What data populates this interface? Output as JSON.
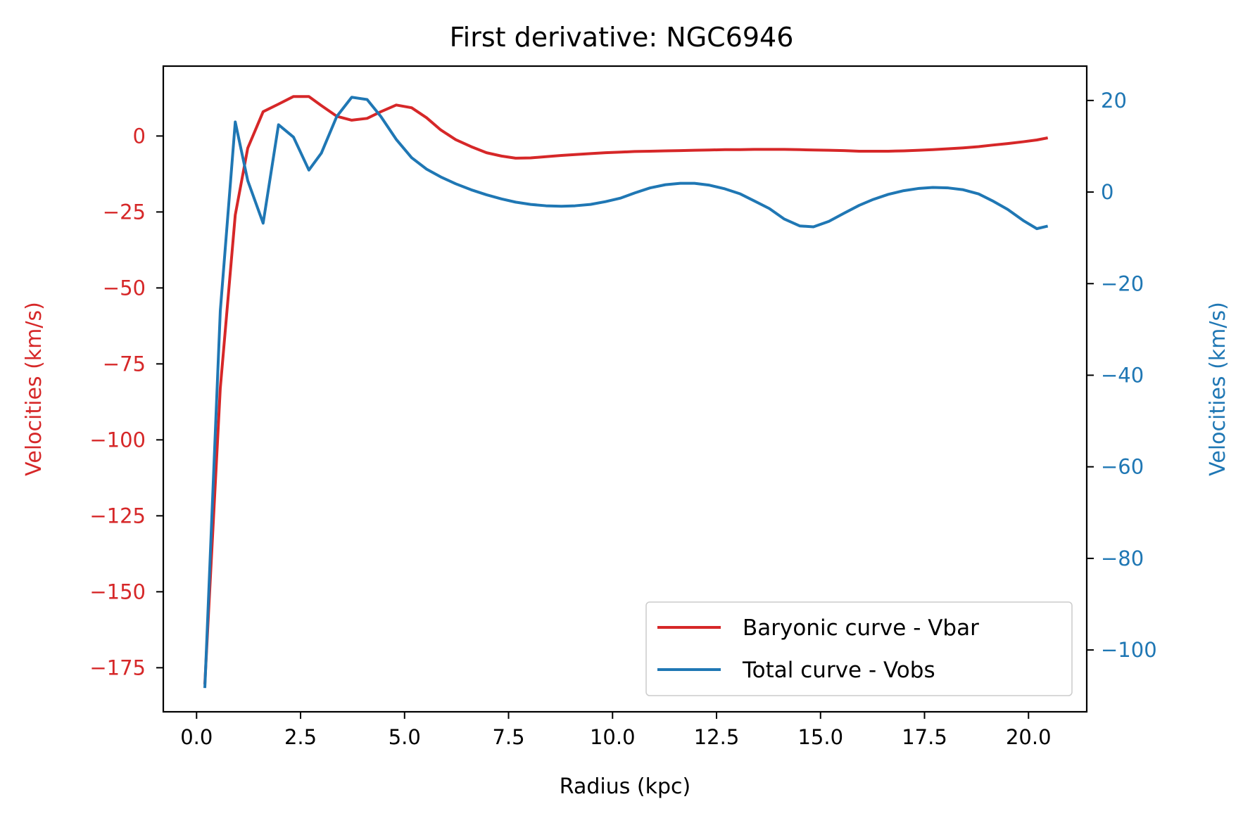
{
  "chart_data": {
    "type": "line",
    "title": "First derivative: NGC6946",
    "xlabel": "Radius (kpc)",
    "ylabel_left": "Velocities (km/s)",
    "ylabel_right": "Velocities (km/s)",
    "xlim": [
      -0.8,
      21.4
    ],
    "ylim_left": [
      -189.5,
      23
    ],
    "ylim_right": [
      -113.5,
      27.5
    ],
    "x_ticks": [
      0.0,
      2.5,
      5.0,
      7.5,
      10.0,
      12.5,
      15.0,
      17.5,
      20.0
    ],
    "x_tick_labels": [
      "0.0",
      "2.5",
      "5.0",
      "7.5",
      "10.0",
      "12.5",
      "15.0",
      "17.5",
      "20.0"
    ],
    "y_left_ticks": [
      0,
      -25,
      -50,
      -75,
      -100,
      -125,
      -150,
      -175
    ],
    "y_left_tick_labels": [
      "0",
      "−25",
      "−50",
      "−75",
      "−100",
      "−125",
      "−150",
      "−175"
    ],
    "y_right_ticks": [
      20,
      0,
      -20,
      -40,
      -60,
      -80,
      -100
    ],
    "y_right_tick_labels": [
      "20",
      "0",
      "−20",
      "−40",
      "−60",
      "−80",
      "−100"
    ],
    "legend_position": "lower-right",
    "grid": false,
    "colors": {
      "left_axis": "#d62728",
      "right_axis": "#1f77b4"
    },
    "series": [
      {
        "name": "Baryonic curve - Vbar",
        "axis": "left",
        "color": "#d62728",
        "x": [
          0.2,
          0.57,
          0.93,
          1.23,
          1.6,
          1.97,
          2.33,
          2.7,
          3.0,
          3.37,
          3.73,
          4.1,
          4.43,
          4.8,
          5.17,
          5.53,
          5.87,
          6.23,
          6.6,
          6.97,
          7.33,
          7.67,
          8.03,
          8.4,
          8.77,
          9.1,
          9.47,
          9.83,
          10.2,
          10.53,
          10.9,
          11.27,
          11.63,
          11.97,
          12.33,
          12.7,
          13.07,
          13.4,
          13.77,
          14.13,
          14.5,
          14.83,
          15.2,
          15.57,
          15.93,
          16.27,
          16.63,
          17.0,
          17.37,
          17.7,
          18.07,
          18.43,
          18.8,
          19.13,
          19.5,
          19.87,
          20.2,
          20.43
        ],
        "y": [
          -180,
          -83,
          -26,
          -4,
          8,
          10.5,
          13,
          13,
          10,
          6.5,
          5.2,
          5.8,
          8,
          10.2,
          9.3,
          6,
          2,
          -1.2,
          -3.5,
          -5.5,
          -6.6,
          -7.3,
          -7.2,
          -6.8,
          -6.4,
          -6.1,
          -5.8,
          -5.5,
          -5.3,
          -5.1,
          -5.0,
          -4.9,
          -4.8,
          -4.7,
          -4.6,
          -4.5,
          -4.5,
          -4.4,
          -4.4,
          -4.4,
          -4.5,
          -4.6,
          -4.7,
          -4.8,
          -5.0,
          -5.0,
          -5.0,
          -4.9,
          -4.7,
          -4.5,
          -4.2,
          -3.9,
          -3.5,
          -3.0,
          -2.5,
          -1.9,
          -1.3,
          -0.7
        ]
      },
      {
        "name": "Total curve - Vobs",
        "axis": "right",
        "color": "#1f77b4",
        "x": [
          0.2,
          0.57,
          0.93,
          1.23,
          1.6,
          1.97,
          2.33,
          2.7,
          3.0,
          3.37,
          3.73,
          4.1,
          4.43,
          4.8,
          5.17,
          5.53,
          5.87,
          6.23,
          6.6,
          6.97,
          7.33,
          7.67,
          8.03,
          8.4,
          8.77,
          9.1,
          9.47,
          9.83,
          10.2,
          10.53,
          10.9,
          11.27,
          11.63,
          11.97,
          12.33,
          12.7,
          13.07,
          13.4,
          13.77,
          14.13,
          14.5,
          14.83,
          15.2,
          15.57,
          15.93,
          16.27,
          16.63,
          17.0,
          17.37,
          17.7,
          18.07,
          18.43,
          18.8,
          19.13,
          19.5,
          19.87,
          20.2,
          20.43
        ],
        "y": [
          -108,
          -26,
          15.3,
          2.5,
          -6.8,
          14.7,
          12,
          4.8,
          8.5,
          16.5,
          20.7,
          20.2,
          16.5,
          11.5,
          7.5,
          5,
          3.3,
          1.8,
          0.5,
          -0.6,
          -1.5,
          -2.2,
          -2.7,
          -3.0,
          -3.1,
          -3.0,
          -2.7,
          -2.1,
          -1.3,
          -0.2,
          0.9,
          1.6,
          1.9,
          1.9,
          1.5,
          0.7,
          -0.4,
          -1.9,
          -3.6,
          -5.9,
          -7.4,
          -7.6,
          -6.4,
          -4.6,
          -2.9,
          -1.6,
          -0.5,
          0.3,
          0.8,
          1.0,
          0.9,
          0.5,
          -0.4,
          -1.9,
          -3.8,
          -6.2,
          -8.0,
          -7.5
        ]
      }
    ]
  }
}
